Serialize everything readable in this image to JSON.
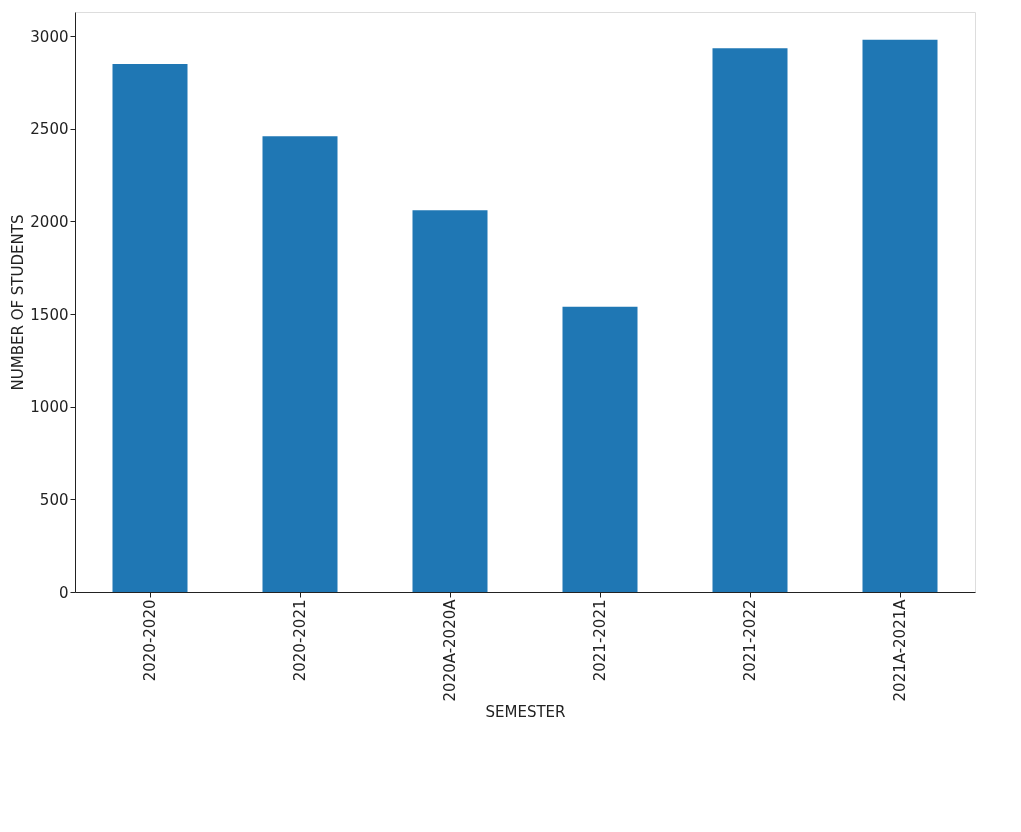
{
  "chart_data": {
    "type": "bar",
    "xlabel": "SEMESTER",
    "ylabel": "NUMBER OF STUDENTS",
    "categories": [
      "2020-2020",
      "2020-2021",
      "2020A-2020A",
      "2021-2021",
      "2021-2022",
      "2021A-2021A"
    ],
    "values": [
      2850,
      2460,
      2060,
      1540,
      2935,
      2980
    ],
    "color": "#1f77b4",
    "ylim": [
      0,
      3130
    ],
    "yticks": [
      0,
      500,
      1000,
      1500,
      2000,
      2500,
      3000
    ],
    "grid": false
  }
}
